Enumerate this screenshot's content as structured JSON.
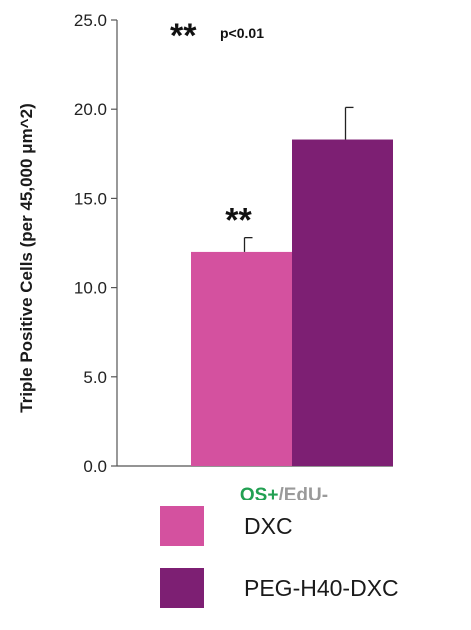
{
  "chart_data": {
    "type": "bar",
    "ylabel": "Triple Positive Cells (per 45,000 μm^2)",
    "ylim": [
      0,
      25
    ],
    "yticks": [
      "0.0",
      "5.0",
      "10.0",
      "15.0",
      "20.0",
      "25.0"
    ],
    "tick_values": [
      0,
      5,
      10,
      15,
      20,
      25
    ],
    "category": {
      "part1": "OS+",
      "part2": "/",
      "part3": "EdU-",
      "part1_color": "#22a052",
      "part2_color": "#9a9a9a",
      "part3_color": "#9a9a9a"
    },
    "significance_note": {
      "stars": "**",
      "text": "p<0.01"
    },
    "series": [
      {
        "name": "DXC",
        "value": 12.0,
        "error": 0.8,
        "color": "#d4519f",
        "marker": "**"
      },
      {
        "name": "PEG-H40-DXC",
        "value": 18.3,
        "error": 1.8,
        "color": "#7d1f73",
        "marker": ""
      }
    ],
    "grid": false,
    "legend_position": "bottom"
  }
}
